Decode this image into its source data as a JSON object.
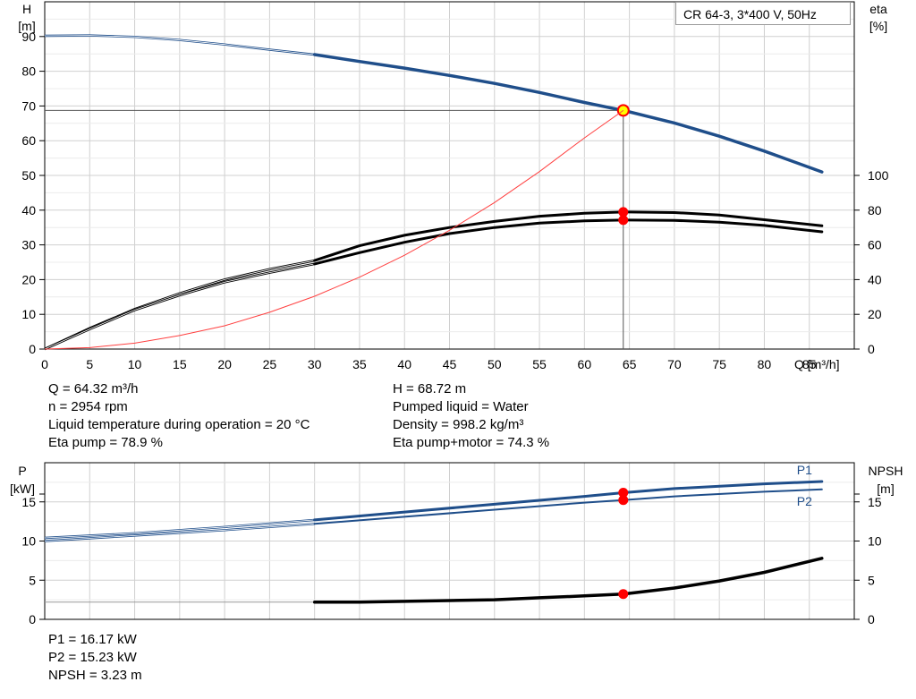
{
  "title": "CR 64-3, 3*400 V, 50Hz",
  "colors": {
    "head_curve": "#1f4e8a",
    "power_curve": "#1f4e8a",
    "eta_curve": "#000000",
    "npsh_curve": "#000000",
    "system_curve": "#ff4040",
    "duty_point": "#ff0000",
    "duty_point_head": "#ffff00",
    "grid": "#d0d0d0"
  },
  "chart_data": [
    {
      "type": "line",
      "xlabel": "Q [m³/h]",
      "ylabel": "H\n[m]",
      "y2label": "eta\n[%]",
      "xlim": [
        0,
        90
      ],
      "ylim": [
        0,
        100
      ],
      "y2lim": [
        0,
        200
      ],
      "xticks": [
        0,
        5,
        10,
        15,
        20,
        25,
        30,
        35,
        40,
        45,
        50,
        55,
        60,
        65,
        70,
        75,
        80,
        85
      ],
      "yticks": [
        0,
        10,
        20,
        30,
        40,
        50,
        60,
        70,
        80,
        90
      ],
      "y2ticks": [
        0,
        20,
        40,
        60,
        80,
        100
      ],
      "grid": true,
      "series": [
        {
          "name": "H",
          "axis": "left",
          "x": [
            0,
            5,
            10,
            15,
            20,
            25,
            30,
            35,
            40,
            45,
            50,
            55,
            60,
            64.32,
            65,
            70,
            75,
            80,
            86.4
          ],
          "y": [
            90.2,
            90.3,
            89.9,
            89.0,
            87.7,
            86.2,
            84.8,
            82.8,
            80.9,
            78.8,
            76.5,
            73.9,
            71.0,
            68.72,
            68.3,
            65.1,
            61.3,
            57.0,
            51.0
          ],
          "dashed_below": 30
        },
        {
          "name": "Eta pump",
          "axis": "right",
          "x": [
            0,
            5,
            10,
            15,
            20,
            25,
            30,
            35,
            40,
            45,
            50,
            55,
            60,
            64.32,
            65,
            70,
            75,
            80,
            86.4
          ],
          "y": [
            0,
            12,
            23,
            32,
            40,
            46,
            51,
            59.5,
            65.5,
            70,
            73.5,
            76.5,
            78.2,
            78.9,
            78.9,
            78.6,
            77.2,
            74.5,
            71.0
          ],
          "dashed_below": 30
        },
        {
          "name": "Eta pump+motor",
          "axis": "right",
          "x": [
            0,
            5,
            10,
            15,
            20,
            25,
            30,
            35,
            40,
            45,
            50,
            55,
            60,
            64.32,
            65,
            70,
            75,
            80,
            86.4
          ],
          "y": [
            0,
            11.5,
            22.5,
            31,
            38.5,
            44,
            49,
            55.5,
            61.5,
            66.5,
            70,
            72.5,
            73.8,
            74.3,
            74.3,
            74.1,
            73.1,
            71.2,
            67.5
          ],
          "dashed_below": 30
        },
        {
          "name": "System curve",
          "axis": "left",
          "x": [
            0,
            5,
            10,
            15,
            20,
            25,
            30,
            35,
            40,
            45,
            50,
            55,
            60,
            64.32
          ],
          "y": [
            0,
            0.4,
            1.7,
            3.9,
            6.7,
            10.6,
            15.2,
            20.7,
            27.0,
            34.2,
            42.2,
            51.1,
            60.8,
            68.72
          ]
        }
      ],
      "duty_point": {
        "x": 64.32,
        "y": 68.72
      }
    },
    {
      "type": "line",
      "ylabel": "P\n[kW]",
      "y2label": "NPSH\n[m]",
      "xlim": [
        0,
        90
      ],
      "ylim": [
        0,
        20
      ],
      "y2lim": [
        0,
        20
      ],
      "yticks": [
        0,
        5,
        10,
        15
      ],
      "y2ticks": [
        0,
        5,
        10,
        15
      ],
      "grid": true,
      "series": [
        {
          "name": "P1",
          "axis": "left",
          "x": [
            0,
            10,
            20,
            30,
            40,
            50,
            60,
            64.32,
            70,
            80,
            86.4
          ],
          "y": [
            10.4,
            11.0,
            11.8,
            12.7,
            13.7,
            14.7,
            15.7,
            16.17,
            16.7,
            17.3,
            17.6
          ],
          "dashed_below": 30
        },
        {
          "name": "P2",
          "axis": "left",
          "x": [
            0,
            10,
            20,
            30,
            40,
            50,
            60,
            64.32,
            70,
            80,
            86.4
          ],
          "y": [
            10.0,
            10.7,
            11.4,
            12.2,
            13.1,
            14.0,
            14.9,
            15.23,
            15.7,
            16.3,
            16.6
          ],
          "dashed_below": 30
        },
        {
          "name": "NPSH",
          "axis": "right",
          "x": [
            0,
            30,
            35,
            40,
            45,
            50,
            55,
            60,
            64.32,
            70,
            75,
            80,
            86.4
          ],
          "y": [
            2.2,
            2.2,
            2.2,
            2.3,
            2.4,
            2.5,
            2.75,
            3.0,
            3.23,
            4.0,
            4.9,
            6.0,
            7.8
          ],
          "dashed_below": 30
        }
      ],
      "duty_point_x": 64.32
    }
  ],
  "info_upper": {
    "left": [
      "Q = 64.32 m³/h",
      "n = 2954 rpm",
      "Liquid temperature during operation = 20 °C",
      "Eta pump = 78.9 %"
    ],
    "right": [
      "H = 68.72 m",
      "Pumped liquid = Water",
      "Density = 998.2 kg/m³",
      "Eta pump+motor = 74.3 %"
    ]
  },
  "info_lower": [
    "P1 = 16.17 kW",
    "P2 = 15.23 kW",
    "NPSH = 3.23 m"
  ]
}
